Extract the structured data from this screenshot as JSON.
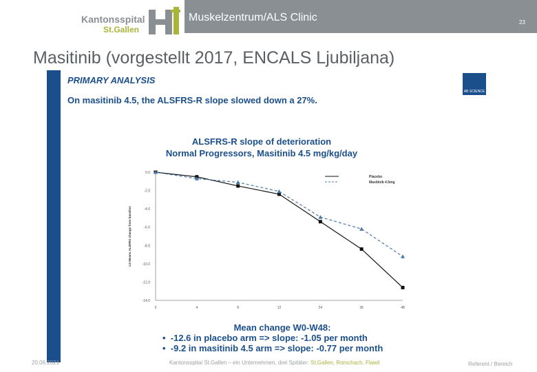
{
  "header": {
    "title": "Muskelzentrum/ALS Clinic",
    "page_number": "23",
    "logo_line1": "Kantonsspital",
    "logo_line2": "St.Gallen",
    "colors": {
      "bar": "#8a8f93",
      "brand_green": "#a9b43a",
      "navy": "#1b4f8c"
    }
  },
  "slide": {
    "title": "Masitinib (vorgestellt 2017, ENCALS Ljubiljana)",
    "primary_label": "PRIMARY ANALYSIS",
    "headline": "On masitinib 4.5, the ALSFRS-R slope slowed down a 27%.",
    "chart_title_line1": "ALSFRS-R slope of deterioration",
    "chart_title_line2": "Normal Progressors, Masitinib 4.5 mg/kg/day",
    "mean_title": "Mean change W0-W48:",
    "bullets": [
      "-12.6 in placebo arm =>  slope: -1.05 per month",
      "-9.2 in masitinib 4.5 arm => slope: -0.77 per month"
    ]
  },
  "chart_data": {
    "type": "line",
    "x": [
      0,
      4,
      8,
      12,
      24,
      36,
      48
    ],
    "xticks": [
      "0",
      "4",
      "8",
      "12",
      "24",
      "36",
      "48"
    ],
    "yticks": [
      "0.0",
      "-2.0",
      "-4.0",
      "-6.0",
      "-8.0",
      "-10.0",
      "-12.0",
      "-14.0"
    ],
    "ylim": [
      -14,
      0
    ],
    "ylabel": "LS Means ALSFRS change from baseline",
    "series": [
      {
        "name": "Placebo",
        "values": [
          0,
          -0.5,
          -1.5,
          -2.4,
          -5.4,
          -8.4,
          -12.6
        ],
        "color": "#111111",
        "marker": "square",
        "dash": false
      },
      {
        "name": "Masitinib 4.5mg",
        "values": [
          0,
          -0.7,
          -1.1,
          -2.1,
          -4.9,
          -6.2,
          -9.2
        ],
        "color": "#4a78a8",
        "marker": "triangle",
        "dash": true
      }
    ]
  },
  "footer": {
    "date": "20.06.2021",
    "org_text": "Kantonsspital St.Gallen – ein Unternehmen, drei Spitäler:",
    "org_links": "St.Gallen, Rorschach, Flawil",
    "right": "Referent / Bereich"
  }
}
